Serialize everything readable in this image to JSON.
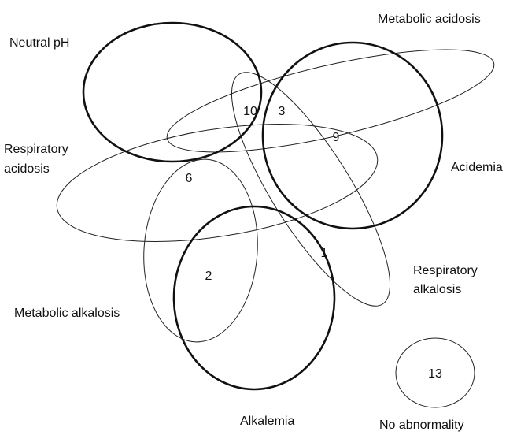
{
  "sets": [
    {
      "label": [
        "Neutral pH"
      ]
    },
    {
      "label": [
        "Metabolic acidosis"
      ]
    },
    {
      "label": [
        "Respiratory",
        "acidosis"
      ]
    },
    {
      "label": [
        "Acidemia"
      ]
    },
    {
      "label": [
        "Respiratory",
        "alkalosis"
      ]
    },
    {
      "label": [
        "Metabolic alkalosis"
      ]
    },
    {
      "label": [
        "Alkalemia"
      ]
    },
    {
      "label": [
        "No abnormality"
      ]
    }
  ],
  "regions": [
    "10",
    "3",
    "9",
    "6",
    "1",
    "2",
    "13"
  ]
}
